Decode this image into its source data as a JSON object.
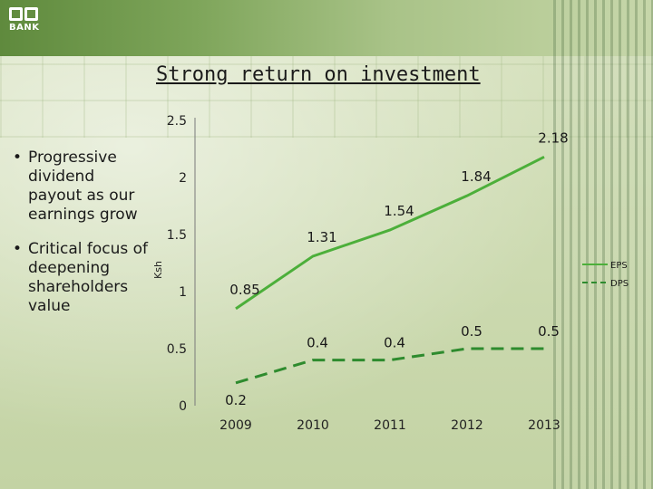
{
  "slide": {
    "logo_text": "BANK",
    "title": "Strong return on investment",
    "bullets": [
      "Progressive dividend payout as our earnings grow",
      "Critical focus of deepening shareholders value"
    ]
  },
  "chart_data": {
    "type": "line",
    "title": "",
    "xlabel": "",
    "ylabel": "Ksh",
    "categories": [
      "2009",
      "2010",
      "2011",
      "2012",
      "2013"
    ],
    "yticks": [
      "0",
      "0.5",
      "1",
      "1.5",
      "2",
      "2.5"
    ],
    "ylim": [
      0,
      2.5
    ],
    "grid": false,
    "legend_position": "right",
    "series": [
      {
        "name": "EPS",
        "values": [
          0.85,
          1.31,
          1.54,
          1.84,
          2.18
        ],
        "labels": [
          "0.85",
          "1.31",
          "1.54",
          "1.84",
          "2.18"
        ],
        "color": "#4caf3a",
        "style": "solid"
      },
      {
        "name": "DPS",
        "values": [
          0.2,
          0.4,
          0.4,
          0.5,
          0.5
        ],
        "labels": [
          "0.2",
          "0.4",
          "0.4",
          "0.5",
          "0.5"
        ],
        "color": "#2e8b2e",
        "style": "dashed"
      }
    ]
  }
}
